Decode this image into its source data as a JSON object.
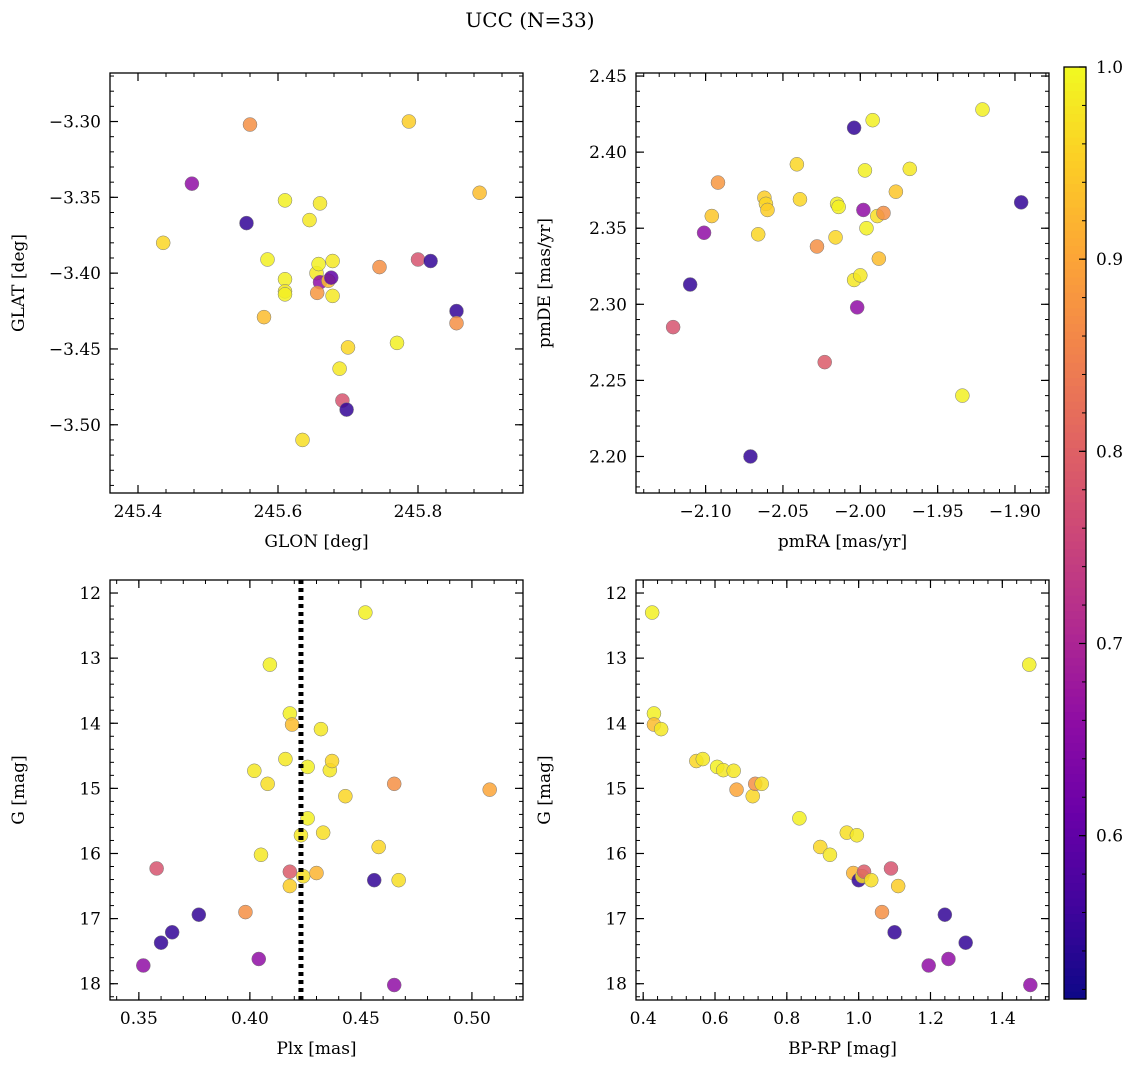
{
  "figure": {
    "title": "UCC (N=33)"
  },
  "colorbar": {
    "min": 0.515,
    "max": 1.0,
    "ticks": [
      0.6,
      0.7,
      0.8,
      0.9,
      1.0
    ],
    "tick_labels": [
      "0.6",
      "0.7",
      "0.8",
      "0.9",
      "1.0"
    ],
    "colormap": "plasma"
  },
  "chart_data": [
    {
      "type": "scatter",
      "xlabel": "GLON [deg]",
      "ylabel": "GLAT [deg]",
      "xlim": [
        245.36,
        245.95
      ],
      "ylim": [
        -3.545,
        -3.268
      ],
      "xticks": [
        245.4,
        245.6,
        245.8
      ],
      "xtick_labels": [
        "245.4",
        "245.6",
        "245.8"
      ],
      "yticks": [
        -3.3,
        -3.35,
        -3.4,
        -3.45,
        -3.5
      ],
      "ytick_labels": [
        "−3.30",
        "−3.35",
        "−3.40",
        "−3.45",
        "−3.50"
      ],
      "points": [
        {
          "x": 245.436,
          "y": -3.38,
          "c": 0.96
        },
        {
          "x": 245.477,
          "y": -3.341,
          "c": 0.66
        },
        {
          "x": 245.555,
          "y": -3.367,
          "c": 0.55
        },
        {
          "x": 245.56,
          "y": -3.302,
          "c": 0.87
        },
        {
          "x": 245.58,
          "y": -3.429,
          "c": 0.93
        },
        {
          "x": 245.585,
          "y": -3.391,
          "c": 0.99
        },
        {
          "x": 245.61,
          "y": -3.352,
          "c": 0.99
        },
        {
          "x": 245.61,
          "y": -3.404,
          "c": 0.99
        },
        {
          "x": 245.61,
          "y": -3.412,
          "c": 0.98
        },
        {
          "x": 245.61,
          "y": -3.414,
          "c": 0.99
        },
        {
          "x": 245.635,
          "y": -3.51,
          "c": 0.97
        },
        {
          "x": 245.645,
          "y": -3.365,
          "c": 0.98
        },
        {
          "x": 245.655,
          "y": -3.4,
          "c": 0.98
        },
        {
          "x": 245.658,
          "y": -3.394,
          "c": 0.99
        },
        {
          "x": 245.66,
          "y": -3.354,
          "c": 0.98
        },
        {
          "x": 245.66,
          "y": -3.406,
          "c": 0.66
        },
        {
          "x": 245.656,
          "y": -3.413,
          "c": 0.88
        },
        {
          "x": 245.672,
          "y": -3.405,
          "c": 0.93
        },
        {
          "x": 245.676,
          "y": -3.403,
          "c": 0.6
        },
        {
          "x": 245.678,
          "y": -3.392,
          "c": 0.98
        },
        {
          "x": 245.678,
          "y": -3.415,
          "c": 0.98
        },
        {
          "x": 245.688,
          "y": -3.463,
          "c": 0.98
        },
        {
          "x": 245.692,
          "y": -3.484,
          "c": 0.78
        },
        {
          "x": 245.698,
          "y": -3.49,
          "c": 0.55
        },
        {
          "x": 245.7,
          "y": -3.449,
          "c": 0.96
        },
        {
          "x": 245.745,
          "y": -3.396,
          "c": 0.87
        },
        {
          "x": 245.77,
          "y": -3.446,
          "c": 0.99
        },
        {
          "x": 245.787,
          "y": -3.3,
          "c": 0.95
        },
        {
          "x": 245.8,
          "y": -3.391,
          "c": 0.78
        },
        {
          "x": 245.818,
          "y": -3.392,
          "c": 0.55
        },
        {
          "x": 245.855,
          "y": -3.425,
          "c": 0.55
        },
        {
          "x": 245.855,
          "y": -3.433,
          "c": 0.87
        },
        {
          "x": 245.888,
          "y": -3.347,
          "c": 0.93
        }
      ]
    },
    {
      "type": "scatter",
      "xlabel": "pmRA [mas/yr]",
      "ylabel": "pmDE [mas/yr]",
      "xlim": [
        -2.145,
        -1.878
      ],
      "ylim": [
        2.176,
        2.452
      ],
      "xticks": [
        -2.1,
        -2.05,
        -2.0,
        -1.95,
        -1.9
      ],
      "xtick_labels": [
        "−2.10",
        "−2.05",
        "−2.00",
        "−1.95",
        "−1.90"
      ],
      "yticks": [
        2.2,
        2.25,
        2.3,
        2.35,
        2.4,
        2.45
      ],
      "ytick_labels": [
        "2.20",
        "2.25",
        "2.30",
        "2.35",
        "2.40",
        "2.45"
      ],
      "points": [
        {
          "x": -2.121,
          "y": 2.285,
          "c": 0.78
        },
        {
          "x": -2.11,
          "y": 2.313,
          "c": 0.55
        },
        {
          "x": -2.101,
          "y": 2.347,
          "c": 0.66
        },
        {
          "x": -2.096,
          "y": 2.358,
          "c": 0.94
        },
        {
          "x": -2.092,
          "y": 2.38,
          "c": 0.88
        },
        {
          "x": -2.071,
          "y": 2.2,
          "c": 0.55
        },
        {
          "x": -2.066,
          "y": 2.346,
          "c": 0.96
        },
        {
          "x": -2.062,
          "y": 2.37,
          "c": 0.95
        },
        {
          "x": -2.061,
          "y": 2.366,
          "c": 0.96
        },
        {
          "x": -2.06,
          "y": 2.362,
          "c": 0.95
        },
        {
          "x": -2.041,
          "y": 2.392,
          "c": 0.96
        },
        {
          "x": -2.039,
          "y": 2.369,
          "c": 0.96
        },
        {
          "x": -2.028,
          "y": 2.338,
          "c": 0.87
        },
        {
          "x": -2.023,
          "y": 2.262,
          "c": 0.79
        },
        {
          "x": -2.016,
          "y": 2.344,
          "c": 0.96
        },
        {
          "x": -2.015,
          "y": 2.366,
          "c": 0.99
        },
        {
          "x": -2.014,
          "y": 2.364,
          "c": 0.99
        },
        {
          "x": -2.004,
          "y": 2.416,
          "c": 0.55
        },
        {
          "x": -2.004,
          "y": 2.316,
          "c": 0.98
        },
        {
          "x": -2.002,
          "y": 2.298,
          "c": 0.66
        },
        {
          "x": -2.0,
          "y": 2.319,
          "c": 0.98
        },
        {
          "x": -1.998,
          "y": 2.362,
          "c": 0.66
        },
        {
          "x": -1.997,
          "y": 2.388,
          "c": 0.99
        },
        {
          "x": -1.996,
          "y": 2.35,
          "c": 0.99
        },
        {
          "x": -1.992,
          "y": 2.421,
          "c": 0.99
        },
        {
          "x": -1.989,
          "y": 2.358,
          "c": 0.97
        },
        {
          "x": -1.988,
          "y": 2.33,
          "c": 0.93
        },
        {
          "x": -1.985,
          "y": 2.36,
          "c": 0.87
        },
        {
          "x": -1.977,
          "y": 2.374,
          "c": 0.94
        },
        {
          "x": -1.968,
          "y": 2.389,
          "c": 0.98
        },
        {
          "x": -1.934,
          "y": 2.24,
          "c": 0.99
        },
        {
          "x": -1.921,
          "y": 2.428,
          "c": 0.99
        },
        {
          "x": -1.896,
          "y": 2.367,
          "c": 0.55
        }
      ]
    },
    {
      "type": "scatter",
      "xlabel": "Plx [mas]",
      "ylabel": "G [mag]",
      "xlim": [
        0.337,
        0.523
      ],
      "ylim": [
        18.25,
        11.8
      ],
      "xticks": [
        0.35,
        0.4,
        0.45,
        0.5
      ],
      "xtick_labels": [
        "0.35",
        "0.40",
        "0.45",
        "0.50"
      ],
      "yticks": [
        12,
        13,
        14,
        15,
        16,
        17,
        18
      ],
      "ytick_labels": [
        "12",
        "13",
        "14",
        "15",
        "16",
        "17",
        "18"
      ],
      "vline": 0.423,
      "points": [
        {
          "x": 0.352,
          "y": 17.72,
          "c": 0.66
        },
        {
          "x": 0.358,
          "y": 16.23,
          "c": 0.78
        },
        {
          "x": 0.36,
          "y": 17.37,
          "c": 0.55
        },
        {
          "x": 0.365,
          "y": 17.21,
          "c": 0.55
        },
        {
          "x": 0.377,
          "y": 16.94,
          "c": 0.55
        },
        {
          "x": 0.398,
          "y": 16.9,
          "c": 0.87
        },
        {
          "x": 0.402,
          "y": 14.73,
          "c": 0.98
        },
        {
          "x": 0.404,
          "y": 17.62,
          "c": 0.66
        },
        {
          "x": 0.405,
          "y": 16.02,
          "c": 0.98
        },
        {
          "x": 0.408,
          "y": 14.93,
          "c": 0.97
        },
        {
          "x": 0.409,
          "y": 13.1,
          "c": 0.99
        },
        {
          "x": 0.416,
          "y": 14.55,
          "c": 0.98
        },
        {
          "x": 0.418,
          "y": 13.85,
          "c": 0.99
        },
        {
          "x": 0.418,
          "y": 16.28,
          "c": 0.79
        },
        {
          "x": 0.418,
          "y": 16.5,
          "c": 0.95
        },
        {
          "x": 0.419,
          "y": 14.02,
          "c": 0.93
        },
        {
          "x": 0.423,
          "y": 15.72,
          "c": 0.98
        },
        {
          "x": 0.424,
          "y": 16.35,
          "c": 0.97
        },
        {
          "x": 0.426,
          "y": 14.67,
          "c": 0.99
        },
        {
          "x": 0.426,
          "y": 15.46,
          "c": 0.99
        },
        {
          "x": 0.43,
          "y": 16.3,
          "c": 0.92
        },
        {
          "x": 0.432,
          "y": 14.09,
          "c": 0.98
        },
        {
          "x": 0.433,
          "y": 15.68,
          "c": 0.97
        },
        {
          "x": 0.436,
          "y": 14.72,
          "c": 0.98
        },
        {
          "x": 0.437,
          "y": 14.58,
          "c": 0.96
        },
        {
          "x": 0.443,
          "y": 15.12,
          "c": 0.96
        },
        {
          "x": 0.452,
          "y": 12.3,
          "c": 0.99
        },
        {
          "x": 0.456,
          "y": 16.41,
          "c": 0.55
        },
        {
          "x": 0.458,
          "y": 15.9,
          "c": 0.96
        },
        {
          "x": 0.465,
          "y": 18.02,
          "c": 0.66
        },
        {
          "x": 0.465,
          "y": 14.93,
          "c": 0.87
        },
        {
          "x": 0.467,
          "y": 16.41,
          "c": 0.97
        },
        {
          "x": 0.508,
          "y": 15.02,
          "c": 0.9
        }
      ]
    },
    {
      "type": "scatter",
      "xlabel": "BP-RP [mag]",
      "ylabel": "G [mag]",
      "xlim": [
        0.38,
        1.53
      ],
      "ylim": [
        18.25,
        11.8
      ],
      "xticks": [
        0.4,
        0.6,
        0.8,
        1.0,
        1.2,
        1.4
      ],
      "xtick_labels": [
        "0.4",
        "0.6",
        "0.8",
        "1.0",
        "1.2",
        "1.4"
      ],
      "yticks": [
        12,
        13,
        14,
        15,
        16,
        17,
        18
      ],
      "ytick_labels": [
        "12",
        "13",
        "14",
        "15",
        "16",
        "17",
        "18"
      ],
      "points": [
        {
          "x": 0.425,
          "y": 12.3,
          "c": 0.99
        },
        {
          "x": 0.43,
          "y": 13.85,
          "c": 0.99
        },
        {
          "x": 0.43,
          "y": 14.02,
          "c": 0.93
        },
        {
          "x": 0.45,
          "y": 14.09,
          "c": 0.98
        },
        {
          "x": 0.548,
          "y": 14.58,
          "c": 0.96
        },
        {
          "x": 0.566,
          "y": 14.55,
          "c": 0.98
        },
        {
          "x": 0.606,
          "y": 14.67,
          "c": 0.99
        },
        {
          "x": 0.623,
          "y": 14.72,
          "c": 0.98
        },
        {
          "x": 0.652,
          "y": 14.73,
          "c": 0.98
        },
        {
          "x": 0.66,
          "y": 15.02,
          "c": 0.9
        },
        {
          "x": 0.705,
          "y": 15.12,
          "c": 0.96
        },
        {
          "x": 0.712,
          "y": 14.93,
          "c": 0.87
        },
        {
          "x": 0.73,
          "y": 14.93,
          "c": 0.97
        },
        {
          "x": 0.835,
          "y": 15.46,
          "c": 0.99
        },
        {
          "x": 0.893,
          "y": 15.9,
          "c": 0.96
        },
        {
          "x": 0.92,
          "y": 16.02,
          "c": 0.98
        },
        {
          "x": 0.967,
          "y": 15.68,
          "c": 0.97
        },
        {
          "x": 0.985,
          "y": 16.3,
          "c": 0.92
        },
        {
          "x": 0.995,
          "y": 15.72,
          "c": 0.98
        },
        {
          "x": 1.0,
          "y": 16.41,
          "c": 0.55
        },
        {
          "x": 1.01,
          "y": 16.35,
          "c": 0.97
        },
        {
          "x": 1.015,
          "y": 16.28,
          "c": 0.79
        },
        {
          "x": 1.035,
          "y": 16.41,
          "c": 0.97
        },
        {
          "x": 1.065,
          "y": 16.9,
          "c": 0.87
        },
        {
          "x": 1.09,
          "y": 16.23,
          "c": 0.78
        },
        {
          "x": 1.1,
          "y": 17.21,
          "c": 0.55
        },
        {
          "x": 1.11,
          "y": 16.5,
          "c": 0.95
        },
        {
          "x": 1.195,
          "y": 17.72,
          "c": 0.66
        },
        {
          "x": 1.24,
          "y": 16.94,
          "c": 0.55
        },
        {
          "x": 1.25,
          "y": 17.62,
          "c": 0.66
        },
        {
          "x": 1.298,
          "y": 17.37,
          "c": 0.55
        },
        {
          "x": 1.475,
          "y": 13.1,
          "c": 0.99
        },
        {
          "x": 1.478,
          "y": 18.02,
          "c": 0.66
        }
      ]
    }
  ]
}
